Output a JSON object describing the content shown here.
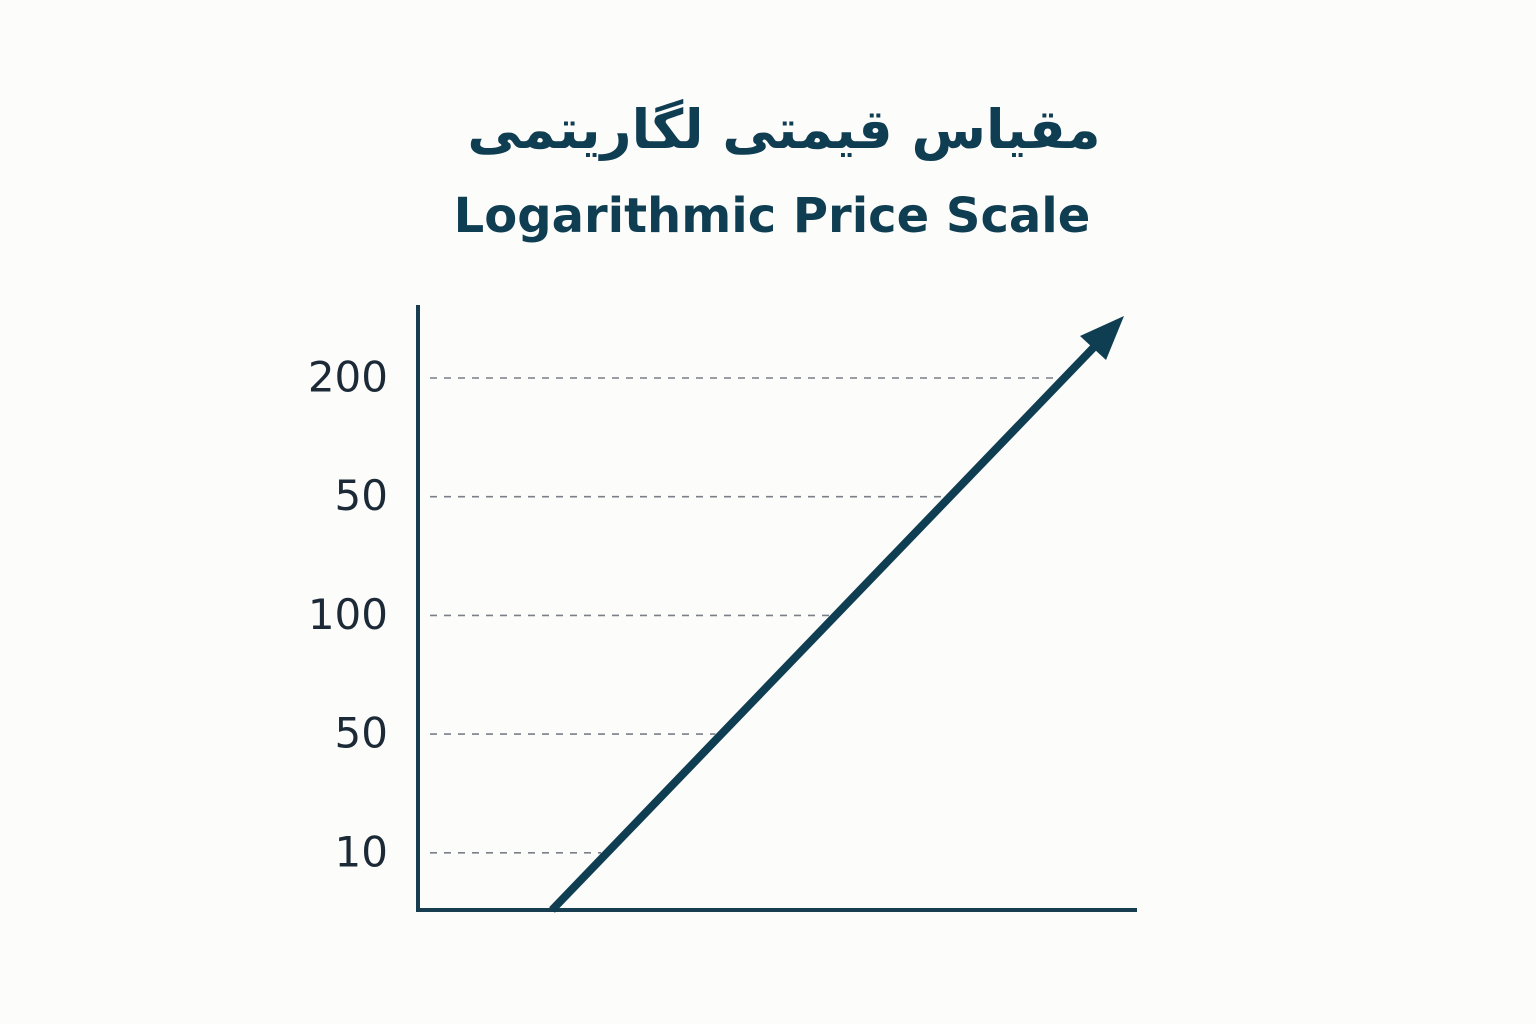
{
  "title": "مقیاس قیمتی لگاریتمی",
  "subtitle": "Logarithmic Price Scale",
  "y_axis_labels": [
    200,
    50,
    100,
    50,
    10
  ]
}
